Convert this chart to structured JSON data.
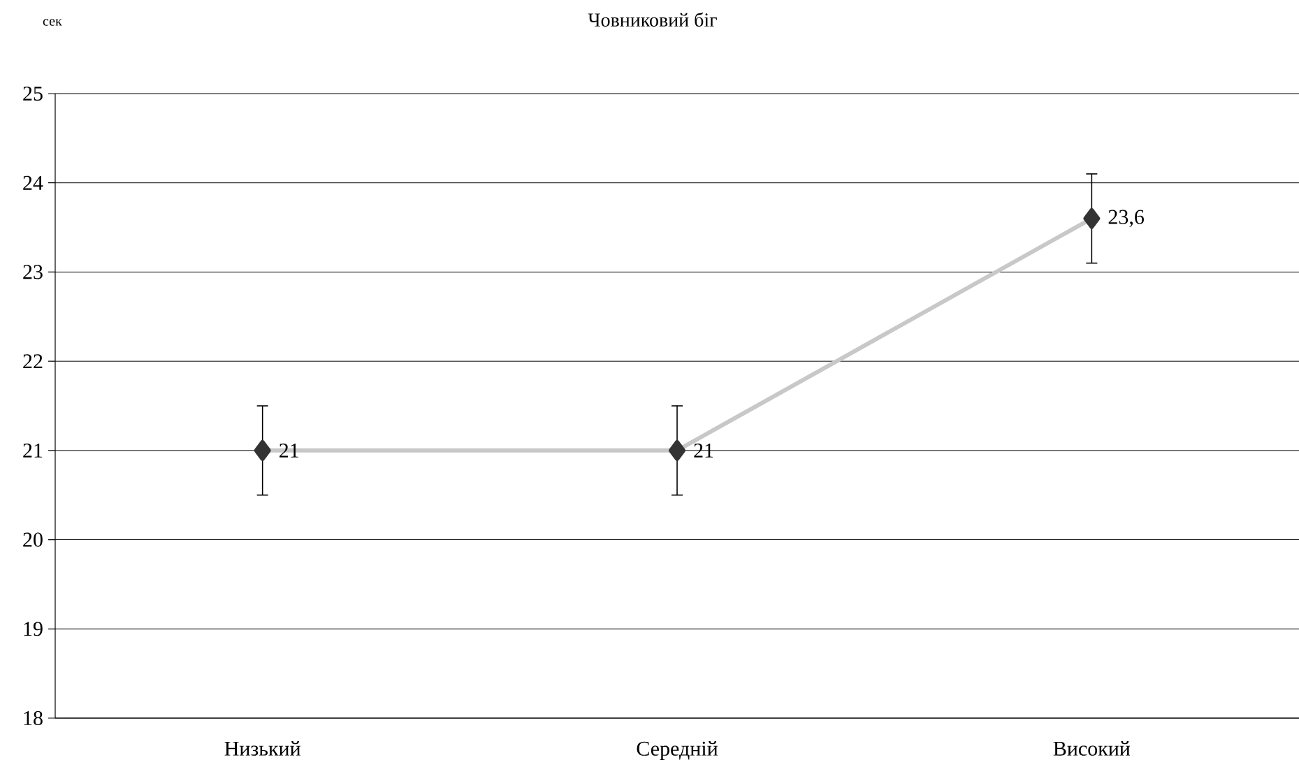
{
  "chart_data": {
    "type": "line",
    "title": "Човниковий біг",
    "ylabel": "сек",
    "categories": [
      "Низький",
      "Середній",
      "Високий"
    ],
    "series": [
      {
        "color": "#c8c8c8",
        "values": [
          21,
          21,
          23.6
        ],
        "errors": [
          0.5,
          0.5,
          0.5
        ],
        "value_labels": [
          "21",
          "21",
          "23,6"
        ]
      }
    ],
    "ylim": [
      18,
      25
    ],
    "yticks": [
      18,
      19,
      20,
      21,
      22,
      23,
      24,
      25
    ],
    "grid": "y",
    "marker": "diamond",
    "line_style": "solid"
  }
}
